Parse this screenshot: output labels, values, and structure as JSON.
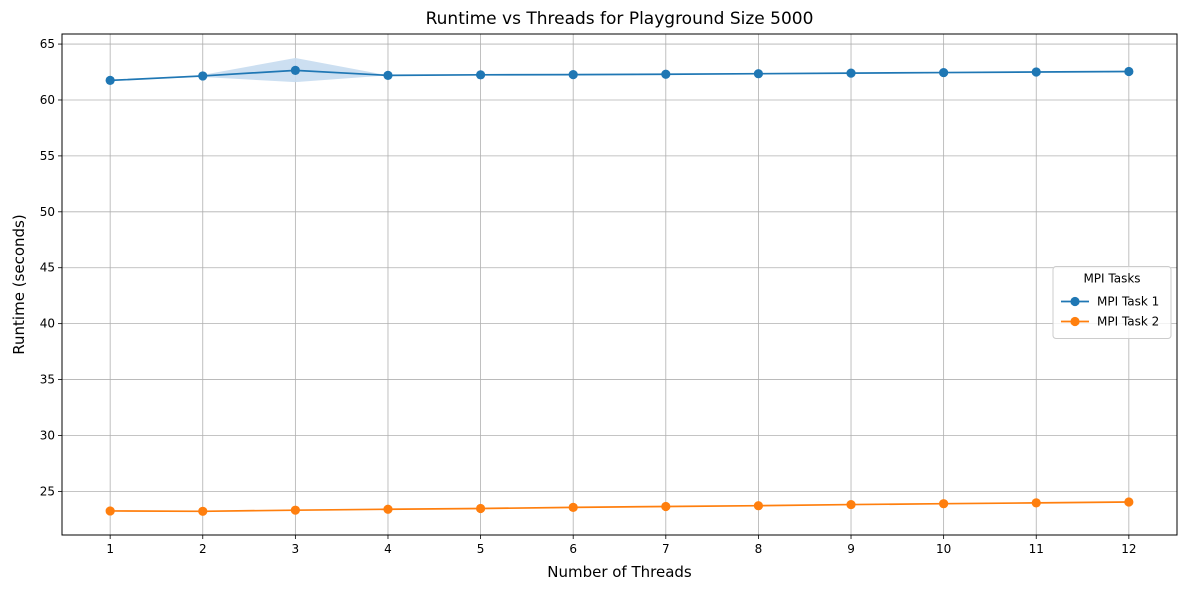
{
  "chart_data": {
    "type": "line",
    "title": "Runtime vs Threads for Playground Size 5000",
    "xlabel": "Number of Threads",
    "ylabel": "Runtime (seconds)",
    "x": [
      1,
      2,
      3,
      4,
      5,
      6,
      7,
      8,
      9,
      10,
      11,
      12
    ],
    "xlim": [
      0.48,
      12.52
    ],
    "ylim": [
      21.1,
      65.9
    ],
    "yticks": [
      25,
      30,
      35,
      40,
      45,
      50,
      55,
      60,
      65
    ],
    "grid": true,
    "legend": {
      "title": "MPI Tasks",
      "placement": "center-right"
    },
    "series": [
      {
        "name": "MPI Task 1",
        "color": "#1f77b4",
        "band_color": "#c6dbef",
        "values": [
          61.75,
          62.15,
          62.65,
          62.2,
          62.25,
          62.27,
          62.3,
          62.35,
          62.4,
          62.45,
          62.5,
          62.55
        ],
        "band_low": [
          61.75,
          62.05,
          61.6,
          62.2,
          62.25,
          62.27,
          62.3,
          62.35,
          62.4,
          62.45,
          62.5,
          62.55
        ],
        "band_high": [
          61.75,
          62.25,
          63.75,
          62.2,
          62.25,
          62.27,
          62.3,
          62.35,
          62.4,
          62.45,
          62.5,
          62.55
        ]
      },
      {
        "name": "MPI Task 2",
        "color": "#ff7f0e",
        "values": [
          23.25,
          23.22,
          23.32,
          23.4,
          23.47,
          23.57,
          23.65,
          23.72,
          23.82,
          23.9,
          23.97,
          24.05
        ]
      }
    ]
  }
}
